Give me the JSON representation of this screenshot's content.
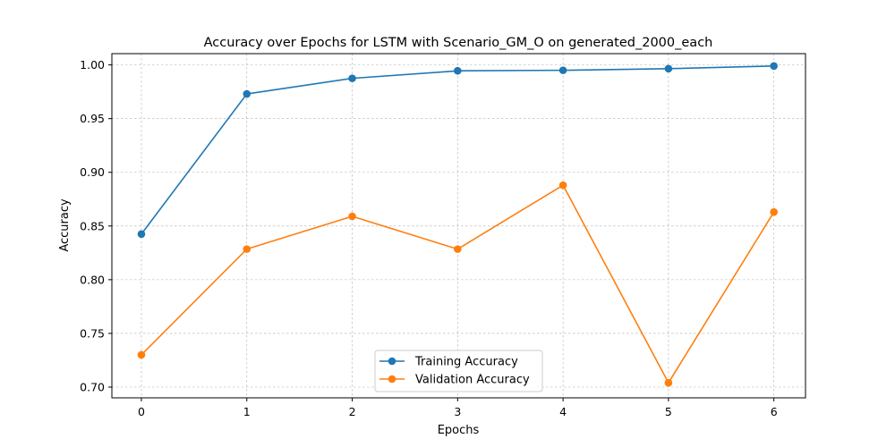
{
  "chart_data": {
    "type": "line",
    "title": "Accuracy over Epochs for LSTM with Scenario_GM_O on generated_2000_each",
    "xlabel": "Epochs",
    "ylabel": "Accuracy",
    "x": [
      0,
      1,
      2,
      3,
      4,
      5,
      6
    ],
    "xticks": [
      "0",
      "1",
      "2",
      "3",
      "4",
      "5",
      "6"
    ],
    "yticks": [
      "0.70",
      "0.75",
      "0.80",
      "0.85",
      "0.90",
      "0.95",
      "1.00"
    ],
    "xlim": [
      -0.28,
      6.3
    ],
    "ylim": [
      0.69,
      1.0105
    ],
    "grid": true,
    "legend_position": "lower center",
    "series": [
      {
        "name": "Training Accuracy",
        "color": "#1f77b4",
        "marker": "circle",
        "values": [
          0.8425,
          0.973,
          0.9875,
          0.9945,
          0.995,
          0.9965,
          0.999
        ]
      },
      {
        "name": "Validation Accuracy",
        "color": "#ff7f0e",
        "marker": "circle",
        "values": [
          0.73,
          0.8285,
          0.859,
          0.8285,
          0.888,
          0.704,
          0.863
        ]
      }
    ]
  }
}
